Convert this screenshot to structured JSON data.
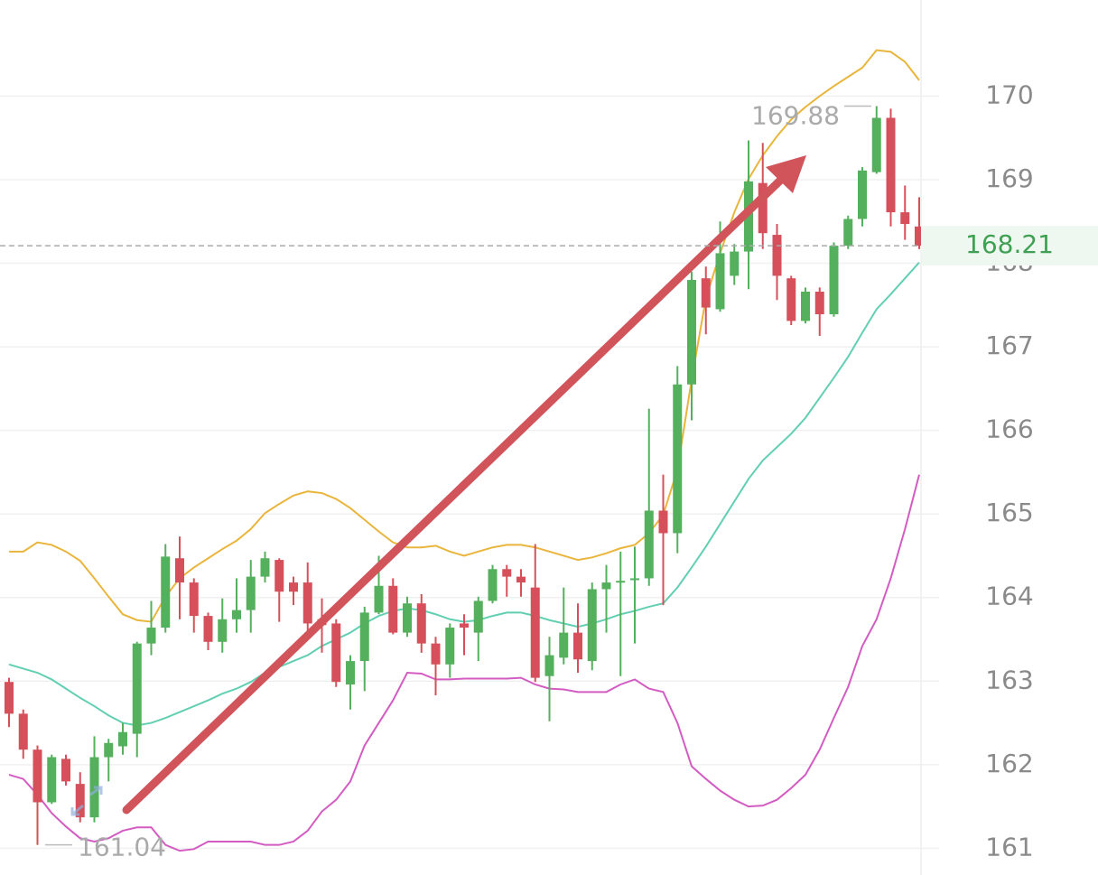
{
  "chart_data": {
    "type": "candlestick",
    "open": [
      162.99,
      162.61,
      162.18,
      161.55,
      162.07,
      161.77,
      161.37,
      162.09,
      162.22,
      162.37,
      163.45,
      163.64,
      164.47,
      164.18,
      163.78,
      163.47,
      163.74,
      163.85,
      164.25,
      164.45,
      164.18,
      164.18,
      163.74,
      163.69,
      162.96,
      163.24,
      163.82,
      164.14,
      163.58,
      163.93,
      163.45,
      163.2,
      163.69,
      163.58,
      163.96,
      164.34,
      164.25,
      164.12,
      163.06,
      163.28,
      163.58,
      163.24,
      164.1,
      164.18,
      164.21,
      164.23,
      165.04,
      164.77,
      166.55,
      167.82,
      167.45,
      167.85,
      168.14,
      168.96,
      168.34,
      167.82,
      167.31,
      167.66,
      167.39,
      168.21,
      168.53,
      169.09,
      169.74,
      168.61,
      168.44
    ],
    "high": [
      163.04,
      162.66,
      162.23,
      162.12,
      162.12,
      161.91,
      162.34,
      162.31,
      162.5,
      163.47,
      163.96,
      164.64,
      164.73,
      164.23,
      163.82,
      163.99,
      164.23,
      164.45,
      164.55,
      164.47,
      164.25,
      164.42,
      163.99,
      163.74,
      163.31,
      163.89,
      164.5,
      164.23,
      164.01,
      164.04,
      163.53,
      163.69,
      163.8,
      164.01,
      164.39,
      164.39,
      164.34,
      164.64,
      163.53,
      164.12,
      163.93,
      164.18,
      164.39,
      164.55,
      164.61,
      166.26,
      165.47,
      166.77,
      167.9,
      167.96,
      168.5,
      168.23,
      169.47,
      169.44,
      168.47,
      167.85,
      167.71,
      167.71,
      168.25,
      168.57,
      169.15,
      169.88,
      169.85,
      168.93,
      168.79
    ],
    "low": [
      162.45,
      162.07,
      161.04,
      161.53,
      161.75,
      161.31,
      161.31,
      161.8,
      162.12,
      162.09,
      163.31,
      163.58,
      163.74,
      163.58,
      163.37,
      163.34,
      163.58,
      163.58,
      164.18,
      163.71,
      163.91,
      163.58,
      163.34,
      162.93,
      162.66,
      162.88,
      163.8,
      163.56,
      163.53,
      163.34,
      162.83,
      163.04,
      163.31,
      163.24,
      163.93,
      164.01,
      164.01,
      162.99,
      162.52,
      163.2,
      163.1,
      163.13,
      163.58,
      163.06,
      163.45,
      164.14,
      163.91,
      164.53,
      166.12,
      167.15,
      167.42,
      167.74,
      167.69,
      168.17,
      167.56,
      167.26,
      167.28,
      167.13,
      167.36,
      168.17,
      168.44,
      169.07,
      168.44,
      168.28,
      168.17
    ],
    "close": [
      162.61,
      162.18,
      161.55,
      162.09,
      161.8,
      161.37,
      162.09,
      162.26,
      162.39,
      163.45,
      163.64,
      164.49,
      164.18,
      163.78,
      163.47,
      163.74,
      163.85,
      164.25,
      164.47,
      164.07,
      164.07,
      163.69,
      163.67,
      162.99,
      163.24,
      163.82,
      164.14,
      163.58,
      163.93,
      163.45,
      163.2,
      163.64,
      163.64,
      163.96,
      164.34,
      164.25,
      164.18,
      163.04,
      163.31,
      163.58,
      163.26,
      164.1,
      164.18,
      164.2,
      164.23,
      165.04,
      164.77,
      166.55,
      167.8,
      167.47,
      168.12,
      168.14,
      168.98,
      168.36,
      167.85,
      167.31,
      167.66,
      167.39,
      168.21,
      168.53,
      169.11,
      169.74,
      168.61,
      168.47,
      168.21
    ],
    "bands": [
      {
        "color": "#e9b53c",
        "values": [
          164.55,
          164.55,
          164.66,
          164.63,
          164.55,
          164.44,
          164.23,
          164.01,
          163.8,
          163.73,
          163.71,
          164.01,
          164.23,
          164.36,
          164.47,
          164.58,
          164.68,
          164.82,
          165.01,
          165.12,
          165.22,
          165.27,
          165.25,
          165.18,
          165.07,
          164.93,
          164.79,
          164.66,
          164.6,
          164.6,
          164.62,
          164.55,
          164.5,
          164.55,
          164.6,
          164.63,
          164.63,
          164.6,
          164.55,
          164.5,
          164.45,
          164.48,
          164.53,
          164.59,
          164.63,
          164.77,
          164.99,
          165.53,
          166.61,
          167.58,
          168.12,
          168.61,
          169.01,
          169.29,
          169.52,
          169.72,
          169.87,
          170.0,
          170.12,
          170.23,
          170.34,
          170.55,
          170.53,
          170.41,
          170.19
        ]
      },
      {
        "color": "#62cfb2",
        "values": [
          163.2,
          163.15,
          163.1,
          163.02,
          162.91,
          162.8,
          162.7,
          162.59,
          162.5,
          162.47,
          162.5,
          162.56,
          162.63,
          162.7,
          162.77,
          162.85,
          162.91,
          162.99,
          163.1,
          163.17,
          163.24,
          163.31,
          163.42,
          163.5,
          163.58,
          163.69,
          163.78,
          163.84,
          163.87,
          163.85,
          163.8,
          163.74,
          163.71,
          163.73,
          163.78,
          163.82,
          163.82,
          163.78,
          163.73,
          163.69,
          163.65,
          163.69,
          163.74,
          163.8,
          163.84,
          163.89,
          163.93,
          164.12,
          164.36,
          164.61,
          164.88,
          165.15,
          165.42,
          165.64,
          165.8,
          165.96,
          166.15,
          166.39,
          166.63,
          166.88,
          167.17,
          167.45,
          167.63,
          167.82,
          168.01
        ]
      },
      {
        "color": "#d35cc2",
        "values": [
          161.88,
          161.83,
          161.64,
          161.42,
          161.26,
          161.12,
          161.08,
          161.12,
          161.21,
          161.25,
          161.25,
          161.04,
          160.97,
          160.99,
          161.08,
          161.08,
          161.08,
          161.08,
          161.04,
          161.04,
          161.08,
          161.21,
          161.44,
          161.58,
          161.8,
          162.23,
          162.5,
          162.77,
          163.1,
          163.09,
          163.02,
          163.02,
          163.03,
          163.03,
          163.03,
          163.03,
          163.04,
          162.96,
          162.91,
          162.9,
          162.87,
          162.87,
          162.87,
          162.96,
          163.02,
          162.91,
          162.87,
          162.5,
          161.98,
          161.83,
          161.69,
          161.58,
          161.5,
          161.51,
          161.58,
          161.72,
          161.88,
          162.18,
          162.56,
          162.93,
          163.42,
          163.74,
          164.23,
          164.82,
          165.47
        ]
      }
    ],
    "up_color": "#55b05d",
    "down_color": "#d5505a",
    "ylim": [
      160.68,
      171.15
    ],
    "yticks": [
      161,
      162,
      163,
      164,
      165,
      166,
      167,
      168,
      169,
      170
    ],
    "grid": true,
    "last_price": 168.21,
    "high_label": 169.88,
    "low_label": 161.04
  }
}
